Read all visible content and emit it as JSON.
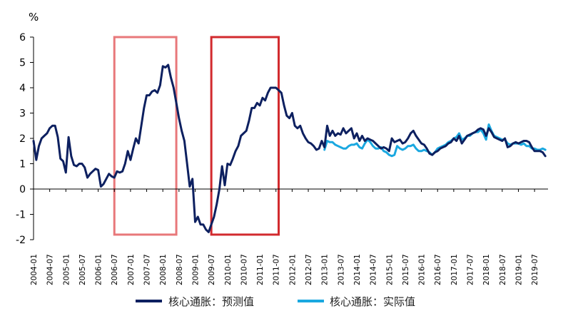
{
  "chart_data": {
    "type": "line",
    "title": "",
    "ylabel": "%",
    "xlabel": "",
    "ylim": [
      -2,
      6
    ],
    "yticks": [
      6,
      5,
      4,
      3,
      2,
      1,
      0,
      -1,
      -2
    ],
    "xlim": [
      "2004-01",
      "2019-12"
    ],
    "xticks": [
      "2004-01",
      "2004-07",
      "2005-01",
      "2005-07",
      "2006-01",
      "2006-07",
      "2007-01",
      "2007-07",
      "2008-01",
      "2008-07",
      "2009-01",
      "2009-07",
      "2010-01",
      "2010-07",
      "2011-01",
      "2011-07",
      "2012-01",
      "2012-07",
      "2013-01",
      "2013-07",
      "2014-01",
      "2014-07",
      "2015-01",
      "2015-07",
      "2016-01",
      "2016-07",
      "2017-01",
      "2017-07",
      "2018-01",
      "2018-07",
      "2019-01",
      "2019-07"
    ],
    "grid": false,
    "legend_position": "bottom",
    "colors": {
      "predicted": "#0d2060",
      "actual": "#1aa8e0",
      "box_light": "#e8787a",
      "box_dark": "#d22a2e",
      "axis": "#000000"
    },
    "series": [
      {
        "name": "核心通胀：预测值",
        "points": [
          [
            "2004-01",
            1.9
          ],
          [
            "2004-02",
            1.15
          ],
          [
            "2004-03",
            1.7
          ],
          [
            "2004-04",
            2.0
          ],
          [
            "2004-05",
            2.1
          ],
          [
            "2004-06",
            2.2
          ],
          [
            "2004-07",
            2.4
          ],
          [
            "2004-08",
            2.5
          ],
          [
            "2004-09",
            2.5
          ],
          [
            "2004-10",
            2.05
          ],
          [
            "2004-11",
            1.2
          ],
          [
            "2004-12",
            1.1
          ],
          [
            "2005-01",
            0.65
          ],
          [
            "2005-02",
            2.05
          ],
          [
            "2005-03",
            1.3
          ],
          [
            "2005-04",
            0.95
          ],
          [
            "2005-05",
            0.9
          ],
          [
            "2005-06",
            1.0
          ],
          [
            "2005-07",
            1.0
          ],
          [
            "2005-08",
            0.85
          ],
          [
            "2005-09",
            0.45
          ],
          [
            "2005-10",
            0.6
          ],
          [
            "2005-11",
            0.7
          ],
          [
            "2005-12",
            0.8
          ],
          [
            "2006-01",
            0.75
          ],
          [
            "2006-02",
            0.1
          ],
          [
            "2006-03",
            0.2
          ],
          [
            "2006-04",
            0.4
          ],
          [
            "2006-05",
            0.6
          ],
          [
            "2006-06",
            0.5
          ],
          [
            "2006-07",
            0.45
          ],
          [
            "2006-08",
            0.7
          ],
          [
            "2006-09",
            0.65
          ],
          [
            "2006-10",
            0.7
          ],
          [
            "2006-11",
            1.0
          ],
          [
            "2006-12",
            1.5
          ],
          [
            "2007-01",
            1.15
          ],
          [
            "2007-02",
            1.6
          ],
          [
            "2007-03",
            2.0
          ],
          [
            "2007-04",
            1.8
          ],
          [
            "2007-05",
            2.5
          ],
          [
            "2007-06",
            3.2
          ],
          [
            "2007-07",
            3.7
          ],
          [
            "2007-08",
            3.7
          ],
          [
            "2007-09",
            3.85
          ],
          [
            "2007-10",
            3.9
          ],
          [
            "2007-11",
            3.8
          ],
          [
            "2007-12",
            4.1
          ],
          [
            "2008-01",
            4.85
          ],
          [
            "2008-02",
            4.8
          ],
          [
            "2008-03",
            4.9
          ],
          [
            "2008-04",
            4.4
          ],
          [
            "2008-05",
            4.0
          ],
          [
            "2008-06",
            3.4
          ],
          [
            "2008-07",
            2.8
          ],
          [
            "2008-08",
            2.3
          ],
          [
            "2008-09",
            1.9
          ],
          [
            "2008-10",
            1.0
          ],
          [
            "2008-11",
            0.1
          ],
          [
            "2008-12",
            0.4
          ],
          [
            "2009-01",
            -1.3
          ],
          [
            "2009-02",
            -1.1
          ],
          [
            "2009-03",
            -1.4
          ],
          [
            "2009-04",
            -1.4
          ],
          [
            "2009-05",
            -1.6
          ],
          [
            "2009-06",
            -1.7
          ],
          [
            "2009-07",
            -1.4
          ],
          [
            "2009-08",
            -1.1
          ],
          [
            "2009-09",
            -0.6
          ],
          [
            "2009-10",
            0.0
          ],
          [
            "2009-11",
            0.9
          ],
          [
            "2009-12",
            0.15
          ],
          [
            "2010-01",
            1.0
          ],
          [
            "2010-02",
            0.95
          ],
          [
            "2010-03",
            1.2
          ],
          [
            "2010-04",
            1.5
          ],
          [
            "2010-05",
            1.7
          ],
          [
            "2010-06",
            2.1
          ],
          [
            "2010-07",
            2.2
          ],
          [
            "2010-08",
            2.3
          ],
          [
            "2010-09",
            2.7
          ],
          [
            "2010-10",
            3.2
          ],
          [
            "2010-11",
            3.2
          ],
          [
            "2010-12",
            3.4
          ],
          [
            "2011-01",
            3.3
          ],
          [
            "2011-02",
            3.6
          ],
          [
            "2011-03",
            3.5
          ],
          [
            "2011-04",
            3.8
          ],
          [
            "2011-05",
            4.0
          ],
          [
            "2011-06",
            4.0
          ],
          [
            "2011-07",
            4.0
          ],
          [
            "2011-08",
            3.9
          ],
          [
            "2011-09",
            3.8
          ],
          [
            "2011-10",
            3.3
          ],
          [
            "2011-11",
            2.9
          ],
          [
            "2011-12",
            2.8
          ],
          [
            "2012-01",
            3.0
          ],
          [
            "2012-02",
            2.5
          ],
          [
            "2012-03",
            2.4
          ],
          [
            "2012-04",
            2.5
          ],
          [
            "2012-05",
            2.2
          ],
          [
            "2012-06",
            2.0
          ],
          [
            "2012-07",
            1.85
          ],
          [
            "2012-08",
            1.8
          ],
          [
            "2012-09",
            1.7
          ],
          [
            "2012-10",
            1.55
          ],
          [
            "2012-11",
            1.6
          ],
          [
            "2012-12",
            1.9
          ],
          [
            "2013-01",
            1.65
          ],
          [
            "2013-02",
            2.5
          ],
          [
            "2013-03",
            2.1
          ],
          [
            "2013-04",
            2.3
          ],
          [
            "2013-05",
            2.1
          ],
          [
            "2013-06",
            2.2
          ],
          [
            "2013-07",
            2.15
          ],
          [
            "2013-08",
            2.4
          ],
          [
            "2013-09",
            2.2
          ],
          [
            "2013-10",
            2.3
          ],
          [
            "2013-11",
            2.4
          ],
          [
            "2013-12",
            2.0
          ],
          [
            "2014-01",
            2.2
          ],
          [
            "2014-02",
            1.9
          ],
          [
            "2014-03",
            2.1
          ],
          [
            "2014-04",
            1.9
          ],
          [
            "2014-05",
            2.0
          ],
          [
            "2014-06",
            1.95
          ],
          [
            "2014-07",
            1.9
          ],
          [
            "2014-08",
            1.8
          ],
          [
            "2014-09",
            1.7
          ],
          [
            "2014-10",
            1.6
          ],
          [
            "2014-11",
            1.65
          ],
          [
            "2014-12",
            1.6
          ],
          [
            "2015-01",
            1.5
          ],
          [
            "2015-02",
            2.0
          ],
          [
            "2015-03",
            1.85
          ],
          [
            "2015-04",
            1.9
          ],
          [
            "2015-05",
            1.95
          ],
          [
            "2015-06",
            1.8
          ],
          [
            "2015-07",
            1.85
          ],
          [
            "2015-08",
            2.0
          ],
          [
            "2015-09",
            2.2
          ],
          [
            "2015-10",
            2.3
          ],
          [
            "2015-11",
            2.1
          ],
          [
            "2015-12",
            1.95
          ],
          [
            "2016-01",
            1.8
          ],
          [
            "2016-02",
            1.75
          ],
          [
            "2016-03",
            1.6
          ],
          [
            "2016-04",
            1.4
          ],
          [
            "2016-05",
            1.35
          ],
          [
            "2016-06",
            1.45
          ],
          [
            "2016-07",
            1.5
          ],
          [
            "2016-08",
            1.6
          ],
          [
            "2016-09",
            1.65
          ],
          [
            "2016-10",
            1.7
          ],
          [
            "2016-11",
            1.8
          ],
          [
            "2016-12",
            1.85
          ],
          [
            "2017-01",
            2.0
          ],
          [
            "2017-02",
            1.9
          ],
          [
            "2017-03",
            2.1
          ],
          [
            "2017-04",
            1.8
          ],
          [
            "2017-05",
            1.95
          ],
          [
            "2017-06",
            2.1
          ],
          [
            "2017-07",
            2.15
          ],
          [
            "2017-08",
            2.2
          ],
          [
            "2017-09",
            2.25
          ],
          [
            "2017-10",
            2.35
          ],
          [
            "2017-11",
            2.4
          ],
          [
            "2017-12",
            2.35
          ],
          [
            "2018-01",
            2.1
          ],
          [
            "2018-02",
            2.4
          ],
          [
            "2018-03",
            2.25
          ],
          [
            "2018-04",
            2.05
          ],
          [
            "2018-05",
            2.0
          ],
          [
            "2018-06",
            1.95
          ],
          [
            "2018-07",
            1.9
          ],
          [
            "2018-08",
            2.0
          ],
          [
            "2018-09",
            1.65
          ],
          [
            "2018-10",
            1.7
          ],
          [
            "2018-11",
            1.8
          ],
          [
            "2018-12",
            1.85
          ],
          [
            "2019-01",
            1.8
          ],
          [
            "2019-02",
            1.85
          ],
          [
            "2019-03",
            1.9
          ],
          [
            "2019-04",
            1.9
          ],
          [
            "2019-05",
            1.85
          ],
          [
            "2019-06",
            1.65
          ],
          [
            "2019-07",
            1.5
          ],
          [
            "2019-08",
            1.5
          ],
          [
            "2019-09",
            1.5
          ],
          [
            "2019-10",
            1.45
          ],
          [
            "2019-11",
            1.3
          ]
        ]
      },
      {
        "name": "核心通胀：实际值",
        "points": [
          [
            "2013-01",
            1.55
          ],
          [
            "2013-02",
            1.9
          ],
          [
            "2013-03",
            1.85
          ],
          [
            "2013-04",
            1.85
          ],
          [
            "2013-05",
            1.75
          ],
          [
            "2013-06",
            1.7
          ],
          [
            "2013-07",
            1.65
          ],
          [
            "2013-08",
            1.6
          ],
          [
            "2013-09",
            1.6
          ],
          [
            "2013-10",
            1.7
          ],
          [
            "2013-11",
            1.75
          ],
          [
            "2013-12",
            1.75
          ],
          [
            "2014-01",
            1.8
          ],
          [
            "2014-02",
            1.65
          ],
          [
            "2014-03",
            1.6
          ],
          [
            "2014-04",
            1.8
          ],
          [
            "2014-05",
            1.95
          ],
          [
            "2014-06",
            1.85
          ],
          [
            "2014-07",
            1.7
          ],
          [
            "2014-08",
            1.6
          ],
          [
            "2014-09",
            1.6
          ],
          [
            "2014-10",
            1.65
          ],
          [
            "2014-11",
            1.5
          ],
          [
            "2014-12",
            1.45
          ],
          [
            "2015-01",
            1.35
          ],
          [
            "2015-02",
            1.3
          ],
          [
            "2015-03",
            1.35
          ],
          [
            "2015-04",
            1.7
          ],
          [
            "2015-05",
            1.6
          ],
          [
            "2015-06",
            1.55
          ],
          [
            "2015-07",
            1.6
          ],
          [
            "2015-08",
            1.7
          ],
          [
            "2015-09",
            1.7
          ],
          [
            "2015-10",
            1.75
          ],
          [
            "2015-11",
            1.6
          ],
          [
            "2015-12",
            1.5
          ],
          [
            "2016-01",
            1.5
          ],
          [
            "2016-02",
            1.55
          ],
          [
            "2016-03",
            1.5
          ],
          [
            "2016-04",
            1.45
          ],
          [
            "2016-05",
            1.35
          ],
          [
            "2016-06",
            1.45
          ],
          [
            "2016-07",
            1.6
          ],
          [
            "2016-08",
            1.65
          ],
          [
            "2016-09",
            1.7
          ],
          [
            "2016-10",
            1.75
          ],
          [
            "2016-11",
            1.85
          ],
          [
            "2016-12",
            1.9
          ],
          [
            "2017-01",
            2.0
          ],
          [
            "2017-02",
            2.05
          ],
          [
            "2017-03",
            2.2
          ],
          [
            "2017-04",
            1.95
          ],
          [
            "2017-05",
            2.0
          ],
          [
            "2017-06",
            2.1
          ],
          [
            "2017-07",
            2.1
          ],
          [
            "2017-08",
            2.2
          ],
          [
            "2017-09",
            2.25
          ],
          [
            "2017-10",
            2.25
          ],
          [
            "2017-11",
            2.35
          ],
          [
            "2017-12",
            2.2
          ],
          [
            "2018-01",
            1.95
          ],
          [
            "2018-02",
            2.55
          ],
          [
            "2018-03",
            2.3
          ],
          [
            "2018-04",
            2.1
          ],
          [
            "2018-05",
            2.05
          ],
          [
            "2018-06",
            2.0
          ],
          [
            "2018-07",
            1.95
          ],
          [
            "2018-08",
            1.95
          ],
          [
            "2018-09",
            1.8
          ],
          [
            "2018-10",
            1.75
          ],
          [
            "2018-11",
            1.8
          ],
          [
            "2018-12",
            1.8
          ],
          [
            "2019-01",
            1.8
          ],
          [
            "2019-02",
            1.75
          ],
          [
            "2019-03",
            1.8
          ],
          [
            "2019-04",
            1.7
          ],
          [
            "2019-05",
            1.7
          ],
          [
            "2019-06",
            1.6
          ],
          [
            "2019-07",
            1.6
          ],
          [
            "2019-08",
            1.55
          ],
          [
            "2019-09",
            1.55
          ],
          [
            "2019-10",
            1.6
          ],
          [
            "2019-11",
            1.55
          ]
        ]
      }
    ],
    "highlight_ranges": [
      {
        "from": "2006-07",
        "to": "2008-06",
        "ymin": -1.8,
        "ymax": 6.0,
        "style": "light"
      },
      {
        "from": "2009-07",
        "to": "2011-08",
        "ymin": -1.8,
        "ymax": 6.0,
        "style": "dark"
      }
    ]
  }
}
